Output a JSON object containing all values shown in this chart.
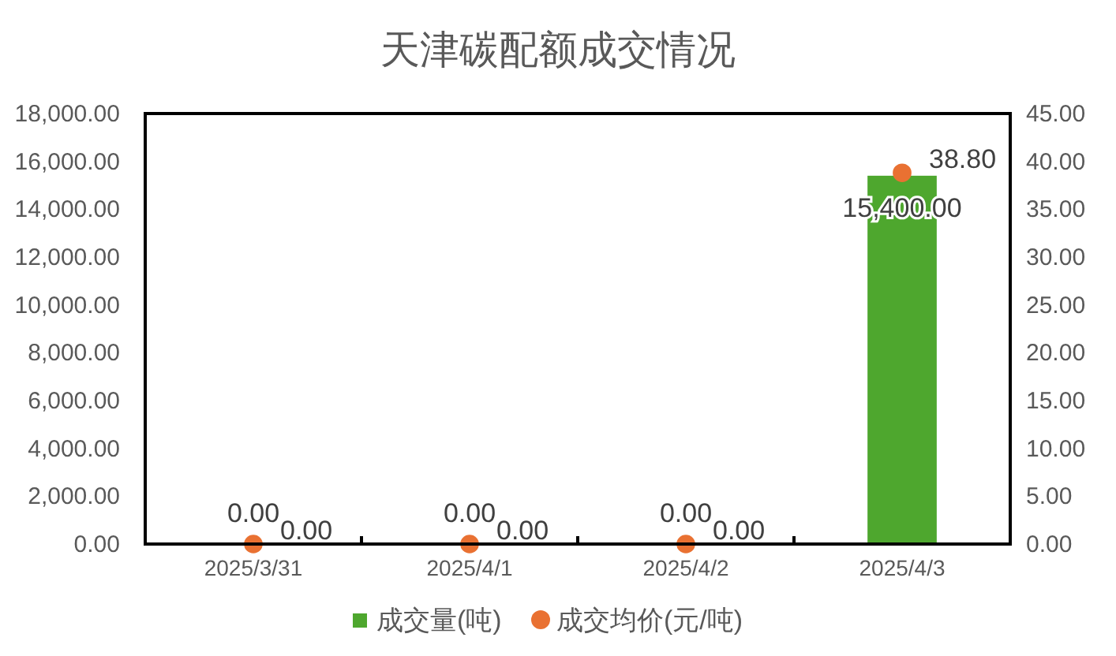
{
  "chart_data": {
    "type": "bar",
    "title": "天津碳配额成交情况",
    "categories": [
      "2025/3/31",
      "2025/4/1",
      "2025/4/2",
      "2025/4/3"
    ],
    "series": [
      {
        "name": "成交量(吨)",
        "color": "#4ea72e",
        "values": [
          0,
          0,
          0,
          15400
        ],
        "value_labels": [
          "0.00",
          "0.00",
          "0.00",
          "15,400.00"
        ]
      },
      {
        "name": "成交均价(元/吨)",
        "type": "scatter",
        "axis": "y2",
        "color": "#e97132",
        "marker": "circle",
        "values": [
          0,
          0,
          0,
          38.8
        ],
        "value_labels": [
          "0.00",
          "0.00",
          "0.00",
          "38.80"
        ]
      }
    ],
    "ylim": [
      0,
      18000
    ],
    "yticks": [
      {
        "value": 0,
        "label": "0.00"
      },
      {
        "value": 2000,
        "label": "2,000.00"
      },
      {
        "value": 4000,
        "label": "4,000.00"
      },
      {
        "value": 6000,
        "label": "6,000.00"
      },
      {
        "value": 8000,
        "label": "8,000.00"
      },
      {
        "value": 10000,
        "label": "10,000.00"
      },
      {
        "value": 12000,
        "label": "12,000.00"
      },
      {
        "value": 14000,
        "label": "14,000.00"
      },
      {
        "value": 16000,
        "label": "16,000.00"
      },
      {
        "value": 18000,
        "label": "18,000.00"
      }
    ],
    "y2lim": [
      0,
      45
    ],
    "y2ticks": [
      {
        "value": 0,
        "label": "0.00"
      },
      {
        "value": 5,
        "label": "5.00"
      },
      {
        "value": 10,
        "label": "10.00"
      },
      {
        "value": 15,
        "label": "15.00"
      },
      {
        "value": 20,
        "label": "20.00"
      },
      {
        "value": 25,
        "label": "25.00"
      },
      {
        "value": 30,
        "label": "30.00"
      },
      {
        "value": 35,
        "label": "35.00"
      },
      {
        "value": 40,
        "label": "40.00"
      },
      {
        "value": 45,
        "label": "45.00"
      }
    ],
    "legend": "bottom"
  }
}
